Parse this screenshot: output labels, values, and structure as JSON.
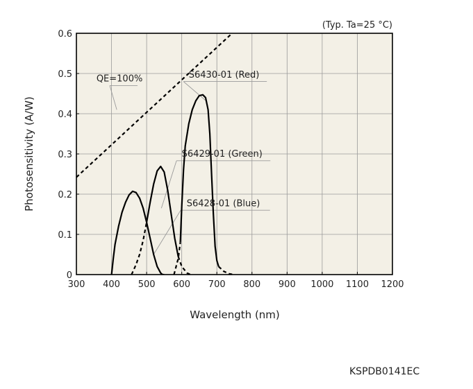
{
  "chart_data": {
    "type": "line",
    "condition_note": "(Typ. Ta=25 °C)",
    "xlabel": "Wavelength (nm)",
    "ylabel": "Photosensitivity (A/W)",
    "xlim": [
      300,
      1200
    ],
    "ylim": [
      0,
      0.6
    ],
    "x_ticks": [
      "300",
      "400",
      "500",
      "600",
      "700",
      "800",
      "900",
      "1000",
      "1100",
      "1200"
    ],
    "y_ticks": [
      "0",
      "0.1",
      "0.2",
      "0.3",
      "0.4",
      "0.5",
      "0.6"
    ],
    "grid": true,
    "background": "#f3f0e6",
    "series": [
      {
        "name": "S6428-01 (Blue)",
        "solid": [
          [
            400,
            0
          ],
          [
            405,
            0.04
          ],
          [
            410,
            0.075
          ],
          [
            420,
            0.12
          ],
          [
            430,
            0.155
          ],
          [
            440,
            0.18
          ],
          [
            450,
            0.198
          ],
          [
            460,
            0.207
          ],
          [
            470,
            0.204
          ],
          [
            480,
            0.19
          ],
          [
            490,
            0.165
          ],
          [
            500,
            0.13
          ],
          [
            510,
            0.09
          ],
          [
            520,
            0.05
          ],
          [
            530,
            0.02
          ],
          [
            540,
            0.004
          ],
          [
            545,
            0
          ]
        ],
        "dashed": [
          [
            545,
            0
          ],
          [
            550,
            0
          ]
        ]
      },
      {
        "name": "S6429-01 (Green)",
        "dashed": [
          [
            457,
            0
          ],
          [
            470,
            0.025
          ],
          [
            480,
            0.05
          ],
          [
            490,
            0.085
          ],
          [
            500,
            0.13
          ]
        ],
        "solid": [
          [
            500,
            0.13
          ],
          [
            510,
            0.18
          ],
          [
            520,
            0.225
          ],
          [
            530,
            0.258
          ],
          [
            540,
            0.269
          ],
          [
            550,
            0.255
          ],
          [
            560,
            0.21
          ],
          [
            570,
            0.15
          ],
          [
            580,
            0.09
          ],
          [
            590,
            0.045
          ]
        ],
        "dashed2": [
          [
            590,
            0.045
          ],
          [
            600,
            0.02
          ],
          [
            615,
            0.004
          ],
          [
            625,
            0
          ]
        ]
      },
      {
        "name": "S6430-01 (Red)",
        "dashed": [
          [
            578,
            0
          ],
          [
            590,
            0.04
          ],
          [
            596,
            0.08
          ]
        ],
        "solid": [
          [
            596,
            0.08
          ],
          [
            600,
            0.17
          ],
          [
            605,
            0.26
          ],
          [
            610,
            0.32
          ],
          [
            620,
            0.375
          ],
          [
            630,
            0.41
          ],
          [
            640,
            0.432
          ],
          [
            650,
            0.445
          ],
          [
            660,
            0.447
          ],
          [
            668,
            0.44
          ],
          [
            675,
            0.41
          ],
          [
            680,
            0.35
          ],
          [
            685,
            0.25
          ],
          [
            690,
            0.15
          ],
          [
            695,
            0.07
          ],
          [
            700,
            0.035
          ],
          [
            705,
            0.02
          ]
        ],
        "dashed2": [
          [
            705,
            0.02
          ],
          [
            720,
            0.008
          ],
          [
            735,
            0.002
          ],
          [
            748,
            0
          ]
        ]
      },
      {
        "name": "QE=100%",
        "dashed": [
          [
            300,
            0.242
          ],
          [
            740,
            0.597
          ]
        ]
      }
    ],
    "labels": [
      {
        "text": "QE=100%",
        "x": 357,
        "y": 0.48,
        "leader_from": [
          395,
          0.47
        ],
        "leader_to": [
          415,
          0.41
        ]
      },
      {
        "text": "S6430-01 (Red)",
        "x": 620,
        "y": 0.49,
        "leader_from": [
          605,
          0.48
        ],
        "leader_to": [
          672,
          0.43
        ]
      },
      {
        "text": "S6429-01 (Green)",
        "x": 600,
        "y": 0.293,
        "leader_from": [
          585,
          0.283
        ],
        "leader_to": [
          542,
          0.165
        ]
      },
      {
        "text": "S6428-01 (Blue)",
        "x": 614,
        "y": 0.17,
        "leader_from": [
          597,
          0.16
        ],
        "leader_to": [
          520,
          0.05
        ]
      }
    ]
  },
  "footer": {
    "code": "KSPDB0141EC"
  }
}
